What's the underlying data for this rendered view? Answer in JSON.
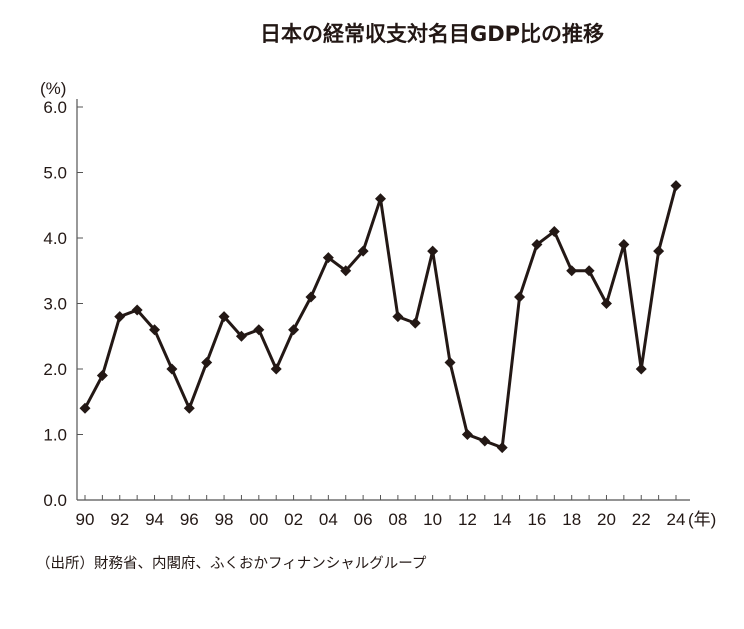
{
  "title": "日本の経常収支対名目GDP比の推移",
  "source": "（出所）財務省、内閣府、ふくおかフィナンシャルグループ",
  "chart_data": {
    "type": "line",
    "title": "日本の経常収支対名目GDP比の推移",
    "ylabel": "(%)",
    "xlabel": "(年)",
    "ylim": [
      0,
      6
    ],
    "yticks": [
      "0.0",
      "1.0",
      "2.0",
      "3.0",
      "4.0",
      "5.0",
      "6.0"
    ],
    "xticks": [
      "90",
      "92",
      "94",
      "96",
      "98",
      "00",
      "02",
      "04",
      "06",
      "08",
      "10",
      "12",
      "14",
      "16",
      "18",
      "20",
      "22",
      "24"
    ],
    "grid": false,
    "marker": "diamond",
    "line_color": "#231815",
    "x": [
      1990,
      1991,
      1992,
      1993,
      1994,
      1995,
      1996,
      1997,
      1998,
      1999,
      2000,
      2001,
      2002,
      2003,
      2004,
      2005,
      2006,
      2007,
      2008,
      2009,
      2010,
      2011,
      2012,
      2013,
      2014,
      2015,
      2016,
      2017,
      2018,
      2019,
      2020,
      2021,
      2022,
      2023,
      2024
    ],
    "values": [
      1.4,
      1.9,
      2.8,
      2.9,
      2.6,
      2.0,
      1.4,
      2.1,
      2.8,
      2.5,
      2.6,
      2.0,
      2.6,
      3.1,
      3.7,
      3.5,
      3.8,
      4.6,
      2.8,
      2.7,
      3.8,
      2.1,
      1.0,
      0.9,
      0.8,
      3.1,
      3.9,
      4.1,
      3.5,
      3.5,
      3.0,
      3.9,
      2.0,
      3.8,
      4.8
    ],
    "source": "（出所）財務省、内閣府、ふくおかフィナンシャルグループ"
  }
}
